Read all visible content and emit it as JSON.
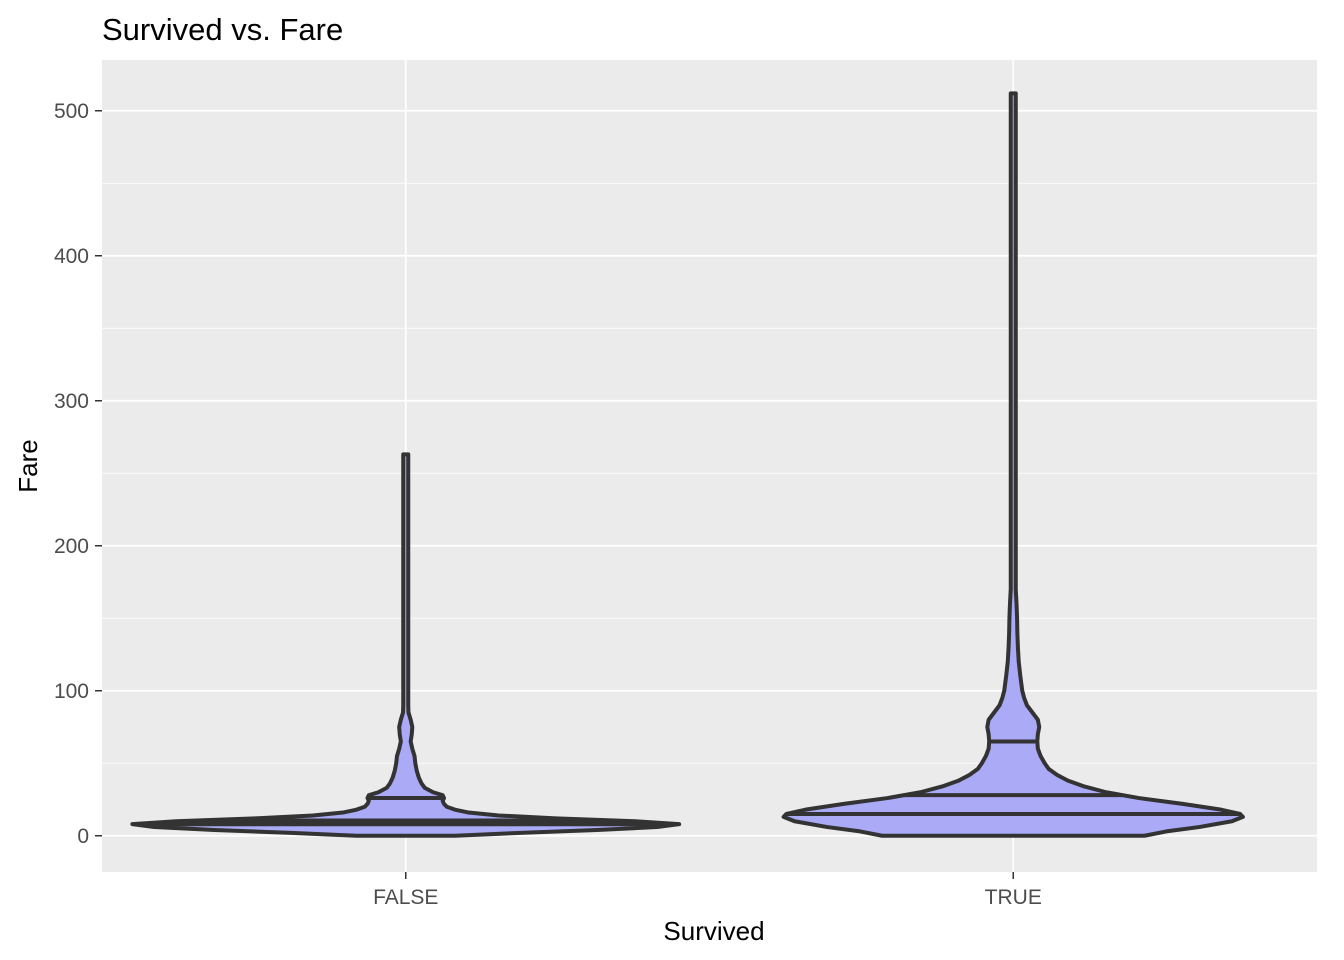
{
  "chart_data": {
    "type": "violin",
    "title": "Survived vs. Fare",
    "xlabel": "Survived",
    "ylabel": "Fare",
    "categories": [
      "FALSE",
      "TRUE"
    ],
    "ylim": [
      -25,
      535
    ],
    "yticks": [
      0,
      100,
      200,
      300,
      400,
      500
    ],
    "grid": true,
    "fill_color": "#aaaaf6",
    "outline_color": "#333333",
    "panel_color": "#ebebeb",
    "violins": [
      {
        "category": "FALSE",
        "quantile_lines": [
          7.9,
          10.5,
          26
        ],
        "density": [
          [
            0,
            0.18
          ],
          [
            2,
            0.42
          ],
          [
            4,
            0.7
          ],
          [
            6,
            0.92
          ],
          [
            8,
            1.0
          ],
          [
            10,
            0.84
          ],
          [
            12,
            0.55
          ],
          [
            14,
            0.34
          ],
          [
            16,
            0.23
          ],
          [
            18,
            0.18
          ],
          [
            20,
            0.15
          ],
          [
            22,
            0.14
          ],
          [
            24,
            0.135
          ],
          [
            26,
            0.14
          ],
          [
            28,
            0.135
          ],
          [
            30,
            0.1
          ],
          [
            33,
            0.07
          ],
          [
            36,
            0.058
          ],
          [
            40,
            0.048
          ],
          [
            45,
            0.04
          ],
          [
            50,
            0.035
          ],
          [
            55,
            0.032
          ],
          [
            60,
            0.024
          ],
          [
            65,
            0.018
          ],
          [
            70,
            0.022
          ],
          [
            75,
            0.024
          ],
          [
            80,
            0.018
          ],
          [
            85,
            0.01
          ],
          [
            90,
            0.007
          ],
          [
            95,
            0.006
          ],
          [
            100,
            0.005
          ],
          [
            105,
            0.006
          ],
          [
            110,
            0.006
          ],
          [
            115,
            0.005
          ],
          [
            125,
            0.004
          ],
          [
            135,
            0.004
          ],
          [
            145,
            0.004
          ],
          [
            150,
            0.006
          ],
          [
            155,
            0.005
          ],
          [
            165,
            0.004
          ],
          [
            180,
            0.004
          ],
          [
            195,
            0.004
          ],
          [
            210,
            0.004
          ],
          [
            220,
            0.005
          ],
          [
            228,
            0.005
          ],
          [
            240,
            0.004
          ],
          [
            255,
            0.004
          ],
          [
            263,
            0.004
          ]
        ]
      },
      {
        "category": "TRUE",
        "quantile_lines": [
          15,
          28,
          65
        ],
        "density": [
          [
            0,
            0.48
          ],
          [
            3,
            0.56
          ],
          [
            6,
            0.68
          ],
          [
            10,
            0.8
          ],
          [
            13,
            0.84
          ],
          [
            15,
            0.83
          ],
          [
            18,
            0.76
          ],
          [
            22,
            0.62
          ],
          [
            26,
            0.46
          ],
          [
            30,
            0.34
          ],
          [
            34,
            0.26
          ],
          [
            38,
            0.2
          ],
          [
            42,
            0.16
          ],
          [
            46,
            0.13
          ],
          [
            50,
            0.115
          ],
          [
            55,
            0.1
          ],
          [
            60,
            0.09
          ],
          [
            65,
            0.088
          ],
          [
            70,
            0.09
          ],
          [
            75,
            0.095
          ],
          [
            80,
            0.09
          ],
          [
            85,
            0.07
          ],
          [
            90,
            0.05
          ],
          [
            95,
            0.04
          ],
          [
            100,
            0.033
          ],
          [
            110,
            0.026
          ],
          [
            120,
            0.02
          ],
          [
            130,
            0.017
          ],
          [
            140,
            0.015
          ],
          [
            150,
            0.014
          ],
          [
            160,
            0.012
          ],
          [
            170,
            0.009
          ],
          [
            180,
            0.007
          ],
          [
            195,
            0.006
          ],
          [
            210,
            0.007
          ],
          [
            220,
            0.008
          ],
          [
            230,
            0.007
          ],
          [
            245,
            0.006
          ],
          [
            255,
            0.007
          ],
          [
            265,
            0.008
          ],
          [
            275,
            0.006
          ],
          [
            300,
            0.005
          ],
          [
            350,
            0.005
          ],
          [
            400,
            0.005
          ],
          [
            450,
            0.005
          ],
          [
            490,
            0.005
          ],
          [
            505,
            0.006
          ],
          [
            512,
            0.006
          ]
        ]
      }
    ]
  }
}
